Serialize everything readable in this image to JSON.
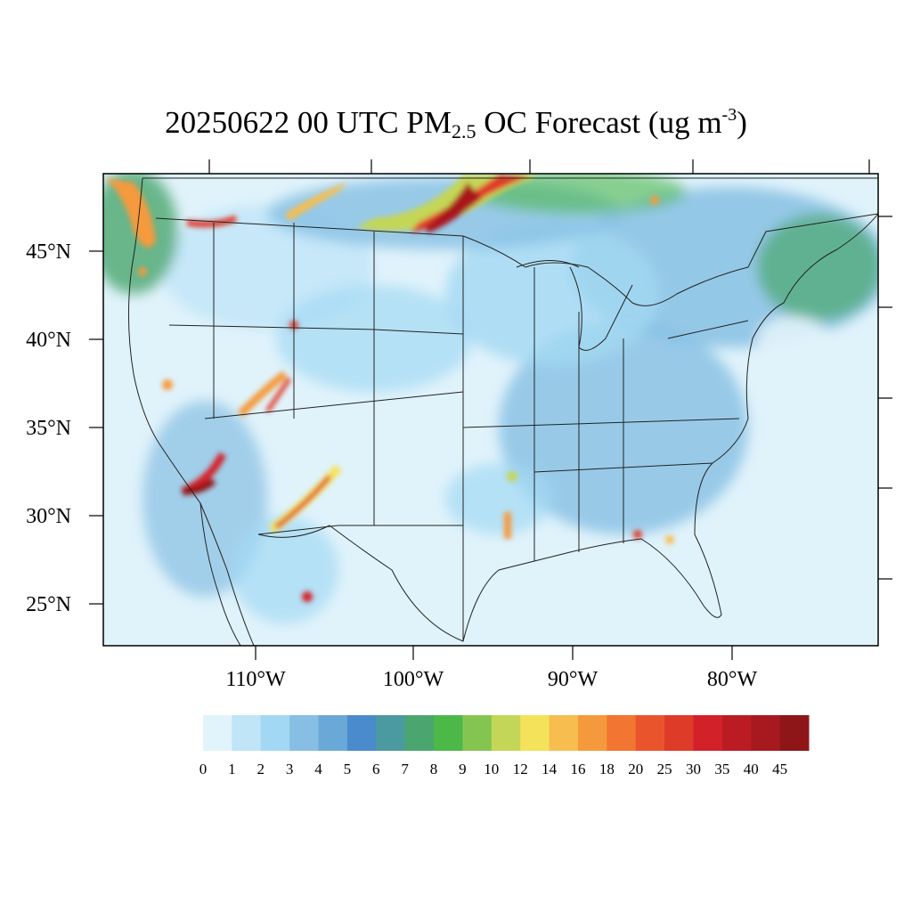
{
  "title": {
    "prefix": "20250622 00 UTC PM",
    "subscript": "2.5",
    "middle": " OC Forecast (ug m",
    "superscript": "-3",
    "suffix": ")"
  },
  "map": {
    "y_axis_labels": [
      "45°N",
      "40°N",
      "35°N",
      "30°N",
      "25°N"
    ],
    "x_axis_labels": [
      "110°W",
      "100°W",
      "90°W",
      "80°W"
    ],
    "colors": {
      "background": "#e0f3fb",
      "frame": "#000000",
      "boundaries": "#222222"
    }
  },
  "colorbar": {
    "labels": [
      "0",
      "1",
      "2",
      "3",
      "4",
      "5",
      "6",
      "7",
      "8",
      "9",
      "10",
      "12",
      "14",
      "16",
      "18",
      "20",
      "25",
      "30",
      "35",
      "40",
      "45"
    ],
    "colors": [
      "#e1f3fb",
      "#bfe5f7",
      "#a2d8f3",
      "#86bfe3",
      "#6aa8d8",
      "#4a8bcb",
      "#4a9aa0",
      "#4aa66e",
      "#4cb848",
      "#84c551",
      "#c4d657",
      "#f4e25a",
      "#f7bd4e",
      "#f59a3c",
      "#f27531",
      "#e9542d",
      "#df3b29",
      "#d32129",
      "#bb1c23",
      "#a8191f",
      "#8e1518"
    ]
  }
}
